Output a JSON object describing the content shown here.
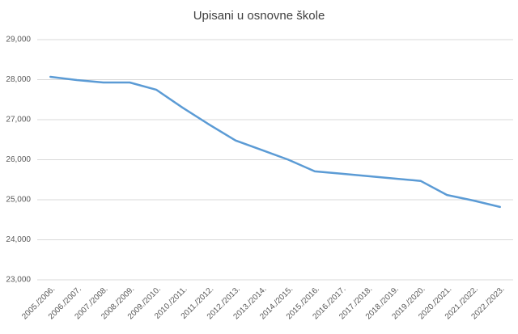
{
  "chart_data": {
    "type": "line",
    "title": "Upisani u osnovne škole",
    "categories": [
      "2005./2006.",
      "2006./2007.",
      "2007./2008.",
      "2008./2009.",
      "2009./2010.",
      "2010./2011.",
      "2011./2012.",
      "2012./2013.",
      "2013./2014.",
      "2014./2015.",
      "2015./2016.",
      "2016./2017.",
      "2017./2018.",
      "2018./2019.",
      "2019./2020.",
      "2020./2021.",
      "2021./2022.",
      "2022./2023."
    ],
    "values": [
      28070,
      27990,
      27930,
      27930,
      27750,
      27300,
      26880,
      26480,
      26240,
      26000,
      25710,
      25650,
      25590,
      25530,
      25470,
      25120,
      24980,
      24820
    ],
    "color": "#5b9bd5",
    "ylim": [
      23000,
      29000
    ],
    "yticks": [
      {
        "value": 23000,
        "label": "23,000"
      },
      {
        "value": 24000,
        "label": "24,000"
      },
      {
        "value": 25000,
        "label": "25,000"
      },
      {
        "value": 26000,
        "label": "26,000"
      },
      {
        "value": 27000,
        "label": "27,000"
      },
      {
        "value": 28000,
        "label": "28,000"
      },
      {
        "value": 29000,
        "label": "29,000"
      }
    ],
    "grid": true
  }
}
